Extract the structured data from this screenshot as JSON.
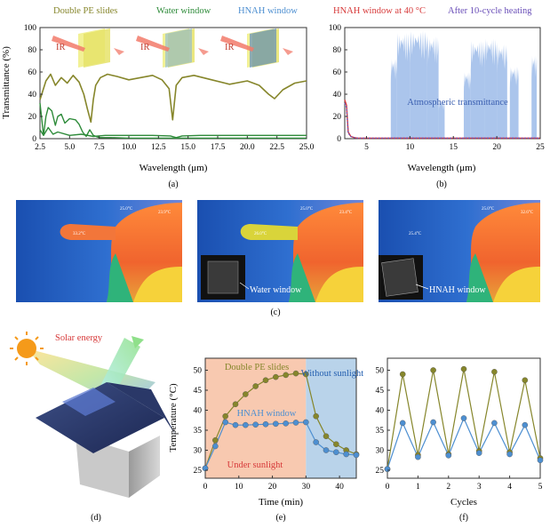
{
  "colors": {
    "olive": "#86862b",
    "green": "#2e8b3a",
    "blue": "#4d8fd1",
    "red": "#d73a3a",
    "purple": "#6a4fb8",
    "light_blue": "#8fb2e6",
    "pink_region": "#f8c9b0",
    "blue_region": "#b9d3ea"
  },
  "panel_labels": {
    "a": "(a)",
    "b": "(b)",
    "c": "(c)",
    "d": "(d)",
    "e": "(e)",
    "f": "(f)"
  },
  "chart_data": [
    {
      "id": "a",
      "type": "line",
      "title": "",
      "xlabel": "Wavelength (μm)",
      "ylabel": "Transmittance (%)",
      "xlim": [
        2.5,
        25.0
      ],
      "ylim": [
        0,
        100
      ],
      "xticks": [
        "2.5",
        "5.0",
        "7.5",
        "10.0",
        "12.5",
        "15.0",
        "17.5",
        "20.0",
        "22.5",
        "25.0"
      ],
      "yticks": [
        "0",
        "20",
        "40",
        "60",
        "80",
        "100"
      ],
      "legend": [
        "Double PE slides",
        "Water window",
        "HNAH window"
      ],
      "annotations": [
        "IR",
        "IR",
        "IR"
      ],
      "series": [
        {
          "name": "Double PE slides",
          "color": "#86862b",
          "x": [
            2.5,
            3.0,
            3.4,
            3.8,
            4.3,
            4.8,
            5.3,
            5.8,
            6.2,
            6.5,
            6.8,
            7.0,
            7.2,
            7.6,
            8.2,
            9.0,
            10.0,
            11.0,
            12.0,
            12.8,
            13.4,
            13.7,
            14.0,
            14.5,
            15.5,
            17.0,
            18.5,
            20.0,
            21.0,
            21.8,
            22.3,
            23.0,
            24.0,
            25.0
          ],
          "y": [
            35,
            52,
            58,
            48,
            55,
            50,
            57,
            51,
            40,
            27,
            15,
            35,
            48,
            55,
            58,
            56,
            53,
            55,
            57,
            53,
            45,
            17,
            48,
            55,
            57,
            53,
            49,
            52,
            48,
            40,
            36,
            44,
            50,
            52
          ]
        },
        {
          "name": "Water window",
          "color": "#2e8b3a",
          "x": [
            2.5,
            2.8,
            3.0,
            3.2,
            3.5,
            3.8,
            4.0,
            4.3,
            4.6,
            5.0,
            5.5,
            5.8,
            6.1,
            6.4,
            6.7,
            7.0,
            7.5,
            8.5,
            10.0,
            12.0,
            14.0,
            16.0,
            18.0,
            20.0,
            22.0,
            25.0
          ],
          "y": [
            32,
            3,
            20,
            28,
            25,
            12,
            20,
            22,
            14,
            18,
            17,
            13,
            6,
            2,
            8,
            3,
            1,
            1,
            0.5,
            0.5,
            0.5,
            0.5,
            0.5,
            0.5,
            0.5,
            0.5
          ]
        },
        {
          "name": "HNAH window",
          "color": "#2e8b3a",
          "x": [
            2.5,
            2.8,
            3.2,
            3.6,
            4.0,
            5.0,
            6.0,
            7.0,
            8.0,
            10.0,
            12.0,
            13.5,
            14.0,
            14.5,
            16.0,
            18.0,
            20.0,
            22.0,
            25.0
          ],
          "y": [
            8,
            3,
            10,
            4,
            6,
            3,
            4,
            2,
            3,
            3,
            3,
            2.5,
            1,
            2.5,
            3,
            3,
            3,
            3,
            3
          ]
        }
      ]
    },
    {
      "id": "b",
      "type": "area",
      "xlabel": "Wavelength (μm)",
      "ylabel": "",
      "xlim": [
        2.5,
        25.0
      ],
      "ylim": [
        0,
        100
      ],
      "xticks": [
        "5",
        "10",
        "15",
        "20",
        "25"
      ],
      "yticks": [
        "0",
        "20",
        "40",
        "60",
        "80",
        "100"
      ],
      "legend": [
        "HNAH window at 40 °C",
        "After 10-cycle heating"
      ],
      "annotation": "Atmospheric transmittance",
      "atmospheric_bands": [
        [
          7.8,
          8.5,
          72
        ],
        [
          8.5,
          10.0,
          95
        ],
        [
          10.0,
          12.0,
          97
        ],
        [
          12.0,
          13.3,
          92
        ],
        [
          13.3,
          14.0,
          35
        ],
        [
          16.2,
          17.0,
          60
        ],
        [
          17.0,
          18.6,
          88
        ],
        [
          18.6,
          20.0,
          90
        ],
        [
          20.0,
          21.2,
          85
        ],
        [
          21.5,
          22.5,
          65
        ],
        [
          24.0,
          24.6,
          75
        ]
      ],
      "series": [
        {
          "name": "HNAH window at 40 °C",
          "color": "#d73a3a",
          "x": [
            2.5,
            2.7,
            2.9,
            3.2,
            3.6,
            4.0,
            25.0
          ],
          "y": [
            35,
            30,
            6,
            2,
            1,
            0.5,
            0.5
          ]
        },
        {
          "name": "After 10-cycle heating",
          "color": "#6a4fb8",
          "x": [
            2.5,
            2.7,
            2.9,
            3.2,
            3.6,
            4.0,
            25.0
          ],
          "y": [
            32,
            28,
            5,
            2,
            1,
            0.5,
            0.5
          ]
        }
      ]
    },
    {
      "id": "c",
      "type": "image",
      "thermal_images": [
        {
          "readouts": [
            "25.0°C",
            "23.9°C",
            "33.2°C"
          ],
          "label": ""
        },
        {
          "readouts": [
            "25.0°C",
            "23.4°C",
            "26.0°C"
          ],
          "label": "Water window"
        },
        {
          "readouts": [
            "25.0°C",
            "32.6°C",
            "25.4°C"
          ],
          "label": "HNAH window"
        }
      ]
    },
    {
      "id": "d",
      "type": "diagram",
      "annotation": "Solar energy"
    },
    {
      "id": "e",
      "type": "line",
      "xlabel": "Time (min)",
      "ylabel": "Temperature (°C)",
      "xlim": [
        0,
        45
      ],
      "ylim": [
        23,
        53
      ],
      "xticks": [
        "0",
        "10",
        "20",
        "30",
        "40"
      ],
      "yticks": [
        "25",
        "30",
        "35",
        "40",
        "45",
        "50"
      ],
      "regions": [
        "Under sunlight",
        "Without sunlight"
      ],
      "region_split": 30,
      "series": [
        {
          "name": "Double PE slides",
          "color": "#86862b",
          "x": [
            0,
            3,
            6,
            9,
            12,
            15,
            18,
            21,
            24,
            27,
            30,
            33,
            36,
            39,
            42,
            45
          ],
          "y": [
            25.5,
            32.5,
            38.5,
            41.5,
            44.0,
            46.0,
            47.5,
            48.3,
            48.8,
            49.2,
            49.0,
            38.5,
            33.5,
            31.5,
            30.0,
            29.0
          ]
        },
        {
          "name": "HNAH window",
          "color": "#4d8fd1",
          "x": [
            0,
            3,
            6,
            9,
            12,
            15,
            18,
            21,
            24,
            27,
            30,
            33,
            36,
            39,
            42,
            45
          ],
          "y": [
            25.5,
            31.0,
            37.0,
            36.3,
            36.3,
            36.4,
            36.5,
            36.6,
            36.7,
            36.9,
            37.0,
            32.0,
            30.0,
            29.5,
            29.0,
            28.8
          ]
        }
      ]
    },
    {
      "id": "f",
      "type": "line",
      "xlabel": "Cycles",
      "ylabel": "",
      "xlim": [
        0,
        5
      ],
      "ylim": [
        23,
        53
      ],
      "xticks": [
        "0",
        "1",
        "2",
        "3",
        "4",
        "5"
      ],
      "yticks": [
        "25",
        "30",
        "35",
        "40",
        "45",
        "50"
      ],
      "series": [
        {
          "name": "Double PE slides",
          "color": "#86862b",
          "x": [
            0,
            0.5,
            1,
            1.5,
            2,
            2.5,
            3,
            3.5,
            4,
            4.5,
            5
          ],
          "y": [
            25.3,
            49.0,
            28.8,
            50.0,
            29.0,
            50.3,
            29.8,
            49.6,
            29.5,
            47.5,
            28.0
          ]
        },
        {
          "name": "HNAH window",
          "color": "#4d8fd1",
          "x": [
            0,
            0.5,
            1,
            1.5,
            2,
            2.5,
            3,
            3.5,
            4,
            4.5,
            5
          ],
          "y": [
            25.3,
            36.8,
            28.3,
            37.0,
            28.7,
            38.0,
            29.3,
            36.8,
            29.0,
            36.3,
            27.5
          ]
        }
      ]
    }
  ]
}
